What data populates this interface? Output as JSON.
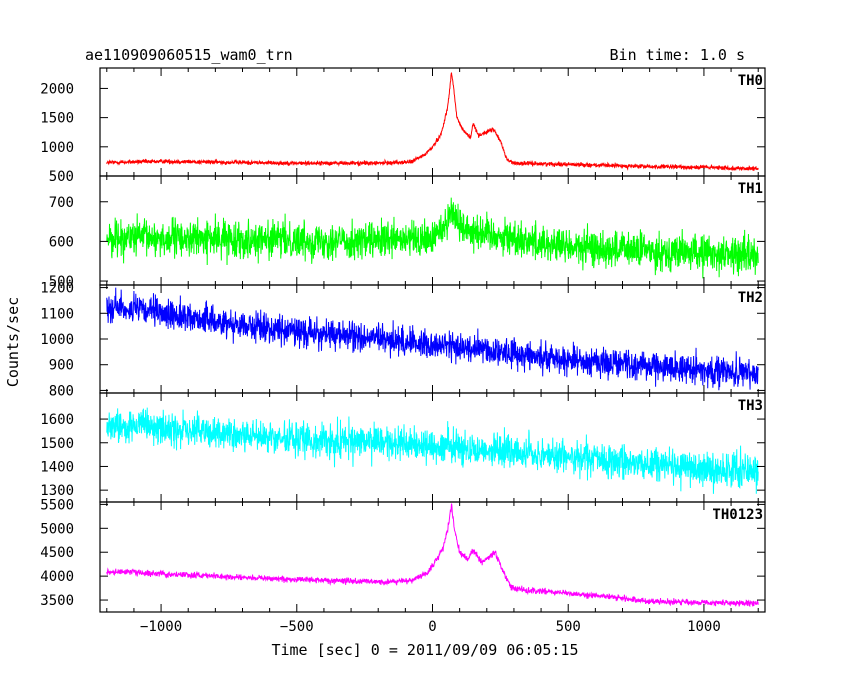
{
  "header": {
    "source": "ae110909060515_wam0_trn",
    "bin_time": "Bin time: 1.0 s"
  },
  "chart_data": {
    "type": "line",
    "xlabel": "Time [sec] 0 = 2011/09/09 06:05:15",
    "ylabel": "Counts/sec",
    "xlim": [
      -1225,
      1225
    ],
    "x_ticks": [
      -1000,
      -500,
      0,
      500,
      1000
    ],
    "x_tick_labels": [
      "−1000",
      "−500",
      "0",
      "500",
      "1000"
    ],
    "data_x_range": [
      -1200,
      1200
    ],
    "panels": [
      {
        "name": "TH0",
        "color": "#ff0000",
        "ylim": [
          500,
          2350
        ],
        "y_ticks": [
          500,
          1000,
          1500,
          2000
        ],
        "y_tick_labels": [
          "500",
          "1000",
          "1500",
          "2000"
        ],
        "profile": [
          [
            -1200,
            730
          ],
          [
            -1000,
            750
          ],
          [
            -500,
            720
          ],
          [
            -200,
            720
          ],
          [
            -80,
            740
          ],
          [
            -30,
            860
          ],
          [
            0,
            1000
          ],
          [
            30,
            1200
          ],
          [
            55,
            1650
          ],
          [
            65,
            2050
          ],
          [
            70,
            2300
          ],
          [
            78,
            2000
          ],
          [
            90,
            1500
          ],
          [
            110,
            1300
          ],
          [
            140,
            1150
          ],
          [
            150,
            1400
          ],
          [
            170,
            1200
          ],
          [
            200,
            1250
          ],
          [
            225,
            1300
          ],
          [
            250,
            1100
          ],
          [
            275,
            780
          ],
          [
            300,
            720
          ],
          [
            500,
            700
          ],
          [
            800,
            660
          ],
          [
            1000,
            650
          ],
          [
            1200,
            620
          ]
        ],
        "noise": 35
      },
      {
        "name": "TH1",
        "color": "#00ff00",
        "ylim": [
          490,
          765
        ],
        "y_ticks": [
          500,
          600,
          700
        ],
        "y_tick_labels": [
          "500",
          "600",
          "700"
        ],
        "profile": [
          [
            -1200,
            610
          ],
          [
            -600,
            605
          ],
          [
            -200,
            600
          ],
          [
            0,
            605
          ],
          [
            50,
            650
          ],
          [
            70,
            680
          ],
          [
            100,
            640
          ],
          [
            200,
            620
          ],
          [
            500,
            585
          ],
          [
            1000,
            570
          ],
          [
            1200,
            565
          ]
        ],
        "noise": 45
      },
      {
        "name": "TH2",
        "color": "#0000ff",
        "ylim": [
          790,
          1210
        ],
        "y_ticks": [
          800,
          900,
          1000,
          1100,
          1200
        ],
        "y_tick_labels": [
          "800",
          "900",
          "1000",
          "1100",
          "1200"
        ],
        "profile": [
          [
            -1200,
            1130
          ],
          [
            -600,
            1040
          ],
          [
            0,
            980
          ],
          [
            500,
            920
          ],
          [
            1000,
            880
          ],
          [
            1200,
            860
          ]
        ],
        "noise": 55
      },
      {
        "name": "TH3",
        "color": "#00ffff",
        "ylim": [
          1250,
          1710
        ],
        "y_ticks": [
          1300,
          1400,
          1500,
          1600
        ],
        "y_tick_labels": [
          "1300",
          "1400",
          "1500",
          "1600"
        ],
        "profile": [
          [
            -1200,
            1580
          ],
          [
            -600,
            1520
          ],
          [
            0,
            1490
          ],
          [
            500,
            1440
          ],
          [
            1000,
            1390
          ],
          [
            1200,
            1380
          ]
        ],
        "noise": 70
      },
      {
        "name": "TH0123",
        "color": "#ff00ff",
        "ylim": [
          3250,
          5550
        ],
        "y_ticks": [
          3500,
          4000,
          4500,
          5000,
          5500
        ],
        "y_tick_labels": [
          "3500",
          "4000",
          "4500",
          "5000",
          "5500"
        ],
        "profile": [
          [
            -1200,
            4100
          ],
          [
            -600,
            3950
          ],
          [
            -200,
            3880
          ],
          [
            -80,
            3900
          ],
          [
            -20,
            4050
          ],
          [
            10,
            4300
          ],
          [
            40,
            4600
          ],
          [
            60,
            5100
          ],
          [
            70,
            5500
          ],
          [
            80,
            5000
          ],
          [
            100,
            4500
          ],
          [
            130,
            4350
          ],
          [
            150,
            4550
          ],
          [
            180,
            4300
          ],
          [
            210,
            4400
          ],
          [
            230,
            4500
          ],
          [
            260,
            4100
          ],
          [
            290,
            3750
          ],
          [
            350,
            3700
          ],
          [
            600,
            3600
          ],
          [
            800,
            3470
          ],
          [
            1000,
            3450
          ],
          [
            1200,
            3430
          ]
        ],
        "noise": 60
      }
    ]
  }
}
